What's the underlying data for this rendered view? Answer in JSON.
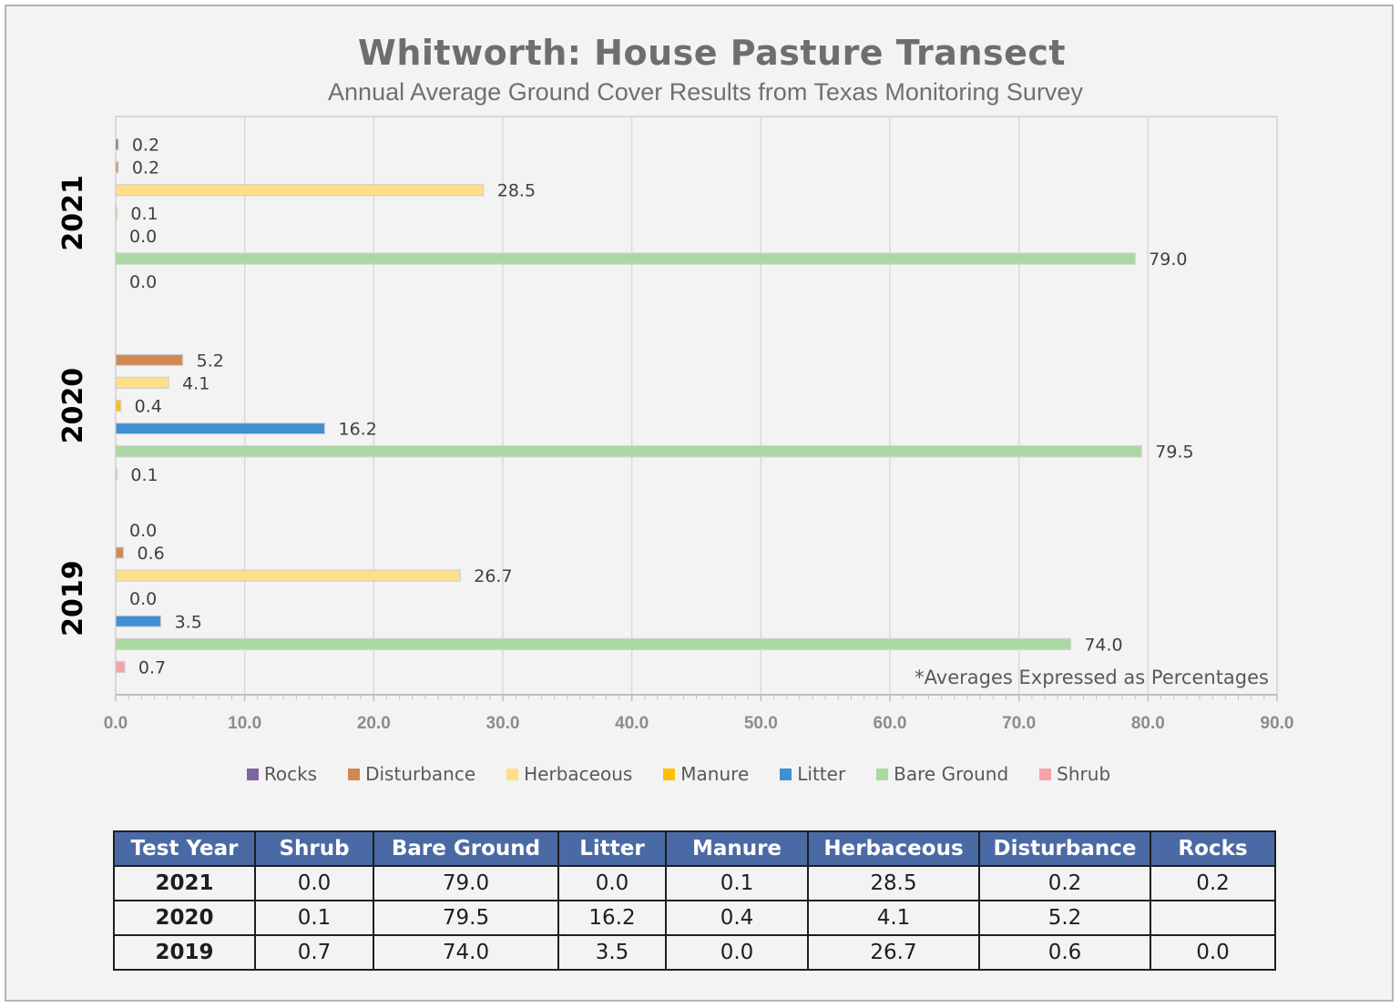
{
  "chart_data": {
    "type": "bar",
    "orientation": "horizontal",
    "title": "Whitworth: House Pasture Transect",
    "subtitle": "Annual Average Ground Cover Results from Texas Monitoring Survey",
    "categories": [
      "2021",
      "2020",
      "2019"
    ],
    "series": [
      {
        "name": "Rocks",
        "color": "#8064a2",
        "values": [
          0.2,
          null,
          0.0
        ]
      },
      {
        "name": "Disturbance",
        "color": "#d08953",
        "values": [
          0.2,
          5.2,
          0.6
        ]
      },
      {
        "name": "Herbaceous",
        "color": "#ffdf87",
        "values": [
          28.5,
          4.1,
          26.7
        ]
      },
      {
        "name": "Manure",
        "color": "#ffc000",
        "values": [
          0.1,
          0.4,
          0.0
        ]
      },
      {
        "name": "Litter",
        "color": "#3f8fd3",
        "values": [
          0.0,
          16.2,
          3.5
        ]
      },
      {
        "name": "Bare Ground",
        "color": "#a9d9a0",
        "values": [
          79.0,
          79.5,
          74.0
        ]
      },
      {
        "name": "Shrub",
        "color": "#f4a3a8",
        "values": [
          0.0,
          0.1,
          0.7
        ]
      }
    ],
    "xlim": [
      0,
      90
    ],
    "xticks": [
      "0.0",
      "10.0",
      "20.0",
      "30.0",
      "40.0",
      "50.0",
      "60.0",
      "70.0",
      "80.0",
      "90.0"
    ],
    "grid": true,
    "legend_position": "bottom",
    "annotation": "*Averages Expressed as Percentages"
  },
  "table": {
    "headers": [
      "Test Year",
      "Shrub",
      "Bare Ground",
      "Litter",
      "Manure",
      "Herbaceous",
      "Disturbance",
      "Rocks"
    ],
    "rows": [
      [
        "2021",
        "0.0",
        "79.0",
        "0.0",
        "0.1",
        "28.5",
        "0.2",
        "0.2"
      ],
      [
        "2020",
        "0.1",
        "79.5",
        "16.2",
        "0.4",
        "4.1",
        "5.2",
        ""
      ],
      [
        "2019",
        "0.7",
        "74.0",
        "3.5",
        "0.0",
        "26.7",
        "0.6",
        "0.0"
      ]
    ]
  }
}
